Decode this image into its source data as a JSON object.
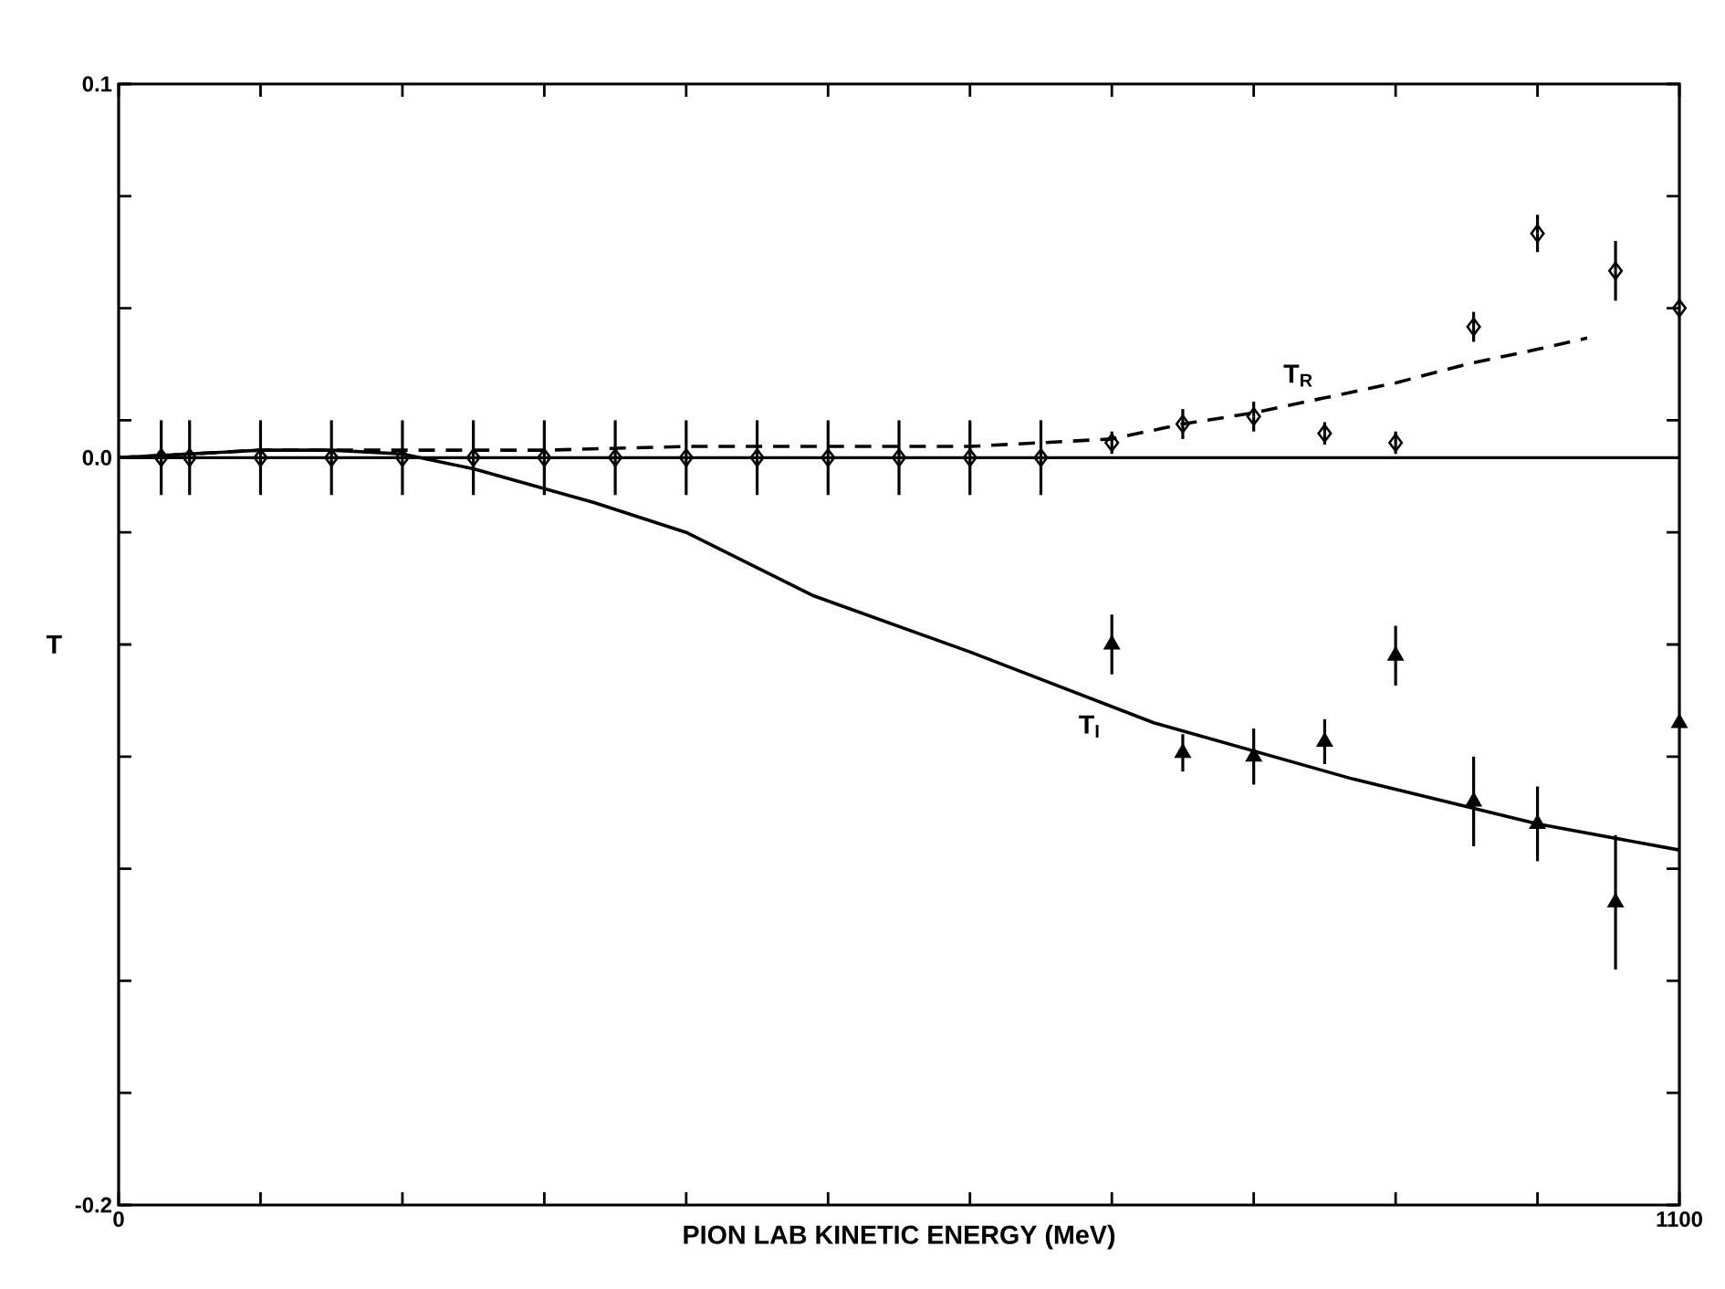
{
  "chart_data": {
    "type": "scatter",
    "xlabel": "PION LAB KINETIC ENERGY (MeV)",
    "ylabel": "T",
    "xlim": [
      0,
      1100
    ],
    "ylim": [
      -0.2,
      0.1
    ],
    "xticks": [
      0,
      {
        "value": 100,
        "label": null
      },
      {
        "value": 200,
        "label": null
      },
      {
        "value": 300,
        "label": null
      },
      {
        "value": 400,
        "label": null
      },
      {
        "value": 500,
        "label": null
      },
      {
        "value": 600,
        "label": null
      },
      {
        "value": 700,
        "label": null
      },
      {
        "value": 800,
        "label": null
      },
      {
        "value": 900,
        "label": null
      },
      {
        "value": 1000,
        "label": null
      },
      1100
    ],
    "yticks": [
      -0.2,
      {
        "value": -0.17,
        "label": null
      },
      {
        "value": -0.14,
        "label": null
      },
      {
        "value": -0.11,
        "label": null
      },
      {
        "value": -0.08,
        "label": null
      },
      {
        "value": -0.05,
        "label": null
      },
      {
        "value": -0.02,
        "label": null
      },
      {
        "value": 0,
        "label": "0.0"
      },
      {
        "value": 0.01,
        "label": null
      },
      {
        "value": 0.04,
        "label": null
      },
      {
        "value": 0.07,
        "label": null
      },
      0.1
    ],
    "series": [
      {
        "marker": "diamond",
        "color": "#000000",
        "x": [
          30,
          50,
          100,
          150,
          200,
          250,
          300,
          350,
          400,
          450,
          500,
          550,
          600,
          650,
          700,
          750,
          800,
          850,
          900,
          955,
          1000,
          1055,
          1100
        ],
        "values": [
          0,
          0,
          0,
          0,
          0,
          0,
          0,
          0,
          0,
          0,
          0,
          0,
          0,
          0,
          0.004,
          0.009,
          0.011,
          0.0065,
          0.004,
          0.035,
          0.06,
          0.05,
          0.04
        ],
        "errors": [
          0.01,
          0.01,
          0.01,
          0.01,
          0.01,
          0.01,
          0.01,
          0.01,
          0.01,
          0.01,
          0.01,
          0.01,
          0.01,
          0.01,
          0.003,
          0.004,
          0.004,
          0.003,
          0.003,
          0.004,
          0.005,
          0.008,
          null
        ]
      },
      {
        "type": "line",
        "marker": "none",
        "line_style": "dashed",
        "color": "#000000",
        "x": [
          0,
          100,
          200,
          300,
          400,
          500,
          600,
          650,
          700,
          750,
          800,
          850,
          900,
          950,
          1000,
          1035
        ],
        "values": [
          0,
          0.002,
          0.002,
          0.002,
          0.003,
          0.003,
          0.003,
          0.004,
          0.005,
          0.009,
          0.012,
          0.016,
          0.02,
          0.025,
          0.029,
          0.032
        ]
      },
      {
        "marker": "triangle",
        "color": "#000000",
        "x": [
          700,
          750,
          800,
          850,
          900,
          955,
          1000,
          1055,
          1100
        ],
        "values": [
          -0.05,
          -0.079,
          -0.08,
          -0.076,
          -0.053,
          -0.092,
          -0.098,
          -0.119,
          -0.071
        ],
        "errors": [
          0.008,
          0.005,
          0.0075,
          0.006,
          0.008,
          0.012,
          0.01,
          0.018,
          null
        ]
      },
      {
        "type": "line",
        "marker": "none",
        "line_style": "solid",
        "color": "#000000",
        "x": [
          0,
          50,
          100,
          150,
          200,
          250,
          335,
          400,
          490,
          600,
          730,
          870,
          1000,
          1100
        ],
        "values": [
          0,
          0.001,
          0.002,
          0.002,
          0.001,
          -0.003,
          -0.012,
          -0.02,
          -0.037,
          -0.052,
          -0.071,
          -0.086,
          -0.098,
          -0.105
        ]
      }
    ],
    "ref_lines": [
      {
        "axis": "y",
        "value": 0,
        "color": "#000000",
        "line_style": "solid"
      }
    ],
    "annotations": [
      {
        "text": "T$_{R}$",
        "x": 850,
        "y": 0.016
      },
      {
        "text": "T$_{I}$",
        "x": 700,
        "y": -0.066
      }
    ]
  }
}
